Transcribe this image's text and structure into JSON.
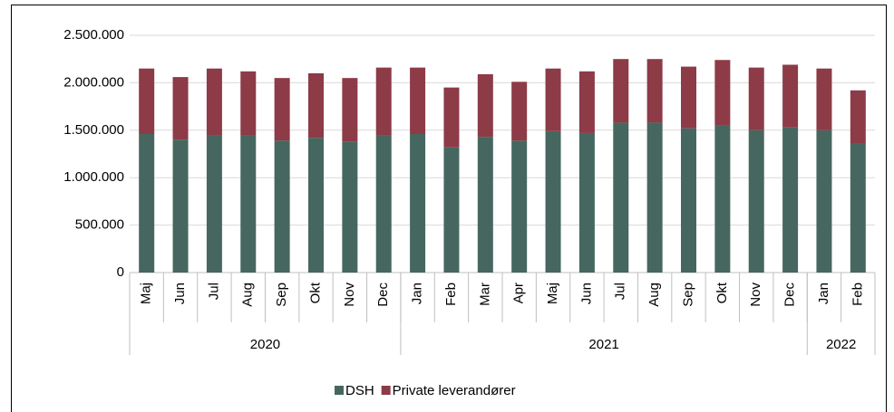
{
  "chart_data": {
    "type": "stacked_bar",
    "categories": [
      "Maj",
      "Jun",
      "Jul",
      "Aug",
      "Sep",
      "Okt",
      "Nov",
      "Dec",
      "Jan",
      "Feb",
      "Mar",
      "Apr",
      "Maj",
      "Jun",
      "Jul",
      "Aug",
      "Sep",
      "Okt",
      "Nov",
      "Dec",
      "Jan",
      "Feb"
    ],
    "groups": [
      {
        "name": "2020",
        "size": 8
      },
      {
        "name": "2021",
        "size": 12
      },
      {
        "name": "2022",
        "size": 2
      }
    ],
    "series": [
      {
        "name": "DSH",
        "color": "#46675f",
        "values": [
          1460000,
          1400000,
          1450000,
          1450000,
          1390000,
          1420000,
          1380000,
          1450000,
          1460000,
          1320000,
          1430000,
          1390000,
          1490000,
          1470000,
          1580000,
          1580000,
          1520000,
          1550000,
          1500000,
          1530000,
          1500000,
          1360000
        ]
      },
      {
        "name": "Private leverandører",
        "color": "#8c3b47",
        "values": [
          690000,
          660000,
          700000,
          670000,
          660000,
          680000,
          670000,
          710000,
          700000,
          630000,
          660000,
          620000,
          660000,
          650000,
          670000,
          670000,
          650000,
          690000,
          660000,
          660000,
          650000,
          560000
        ]
      }
    ],
    "ylim": [
      0,
      2500000
    ],
    "yticks": [
      0,
      {
        "value": 500000,
        "label": "500.000"
      },
      {
        "value": 1000000,
        "label": "1.000.000"
      },
      {
        "value": 1500000,
        "label": "1.500.000"
      },
      {
        "value": 2000000,
        "label": "2.000.000"
      },
      {
        "value": 2500000,
        "label": "2.500.000"
      }
    ],
    "grid": true,
    "legend": "bottom"
  }
}
